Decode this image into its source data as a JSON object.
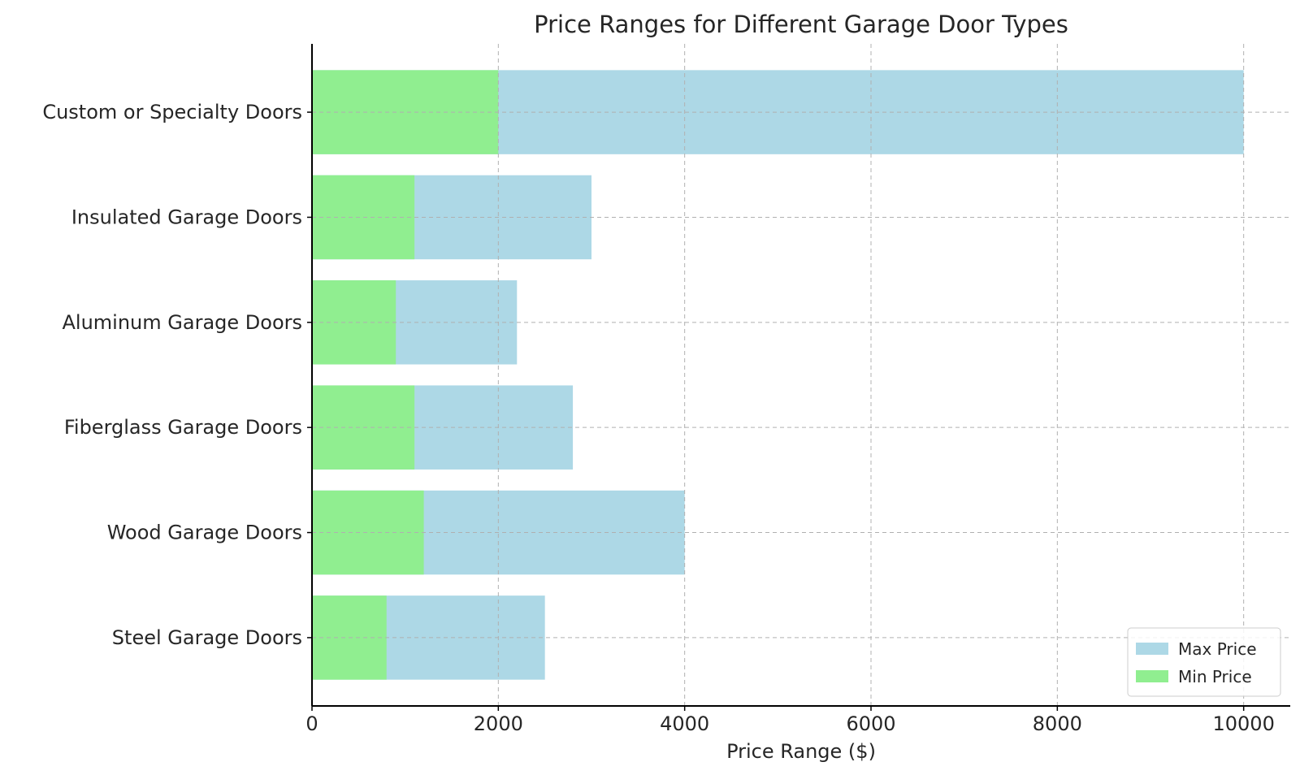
{
  "chart_data": {
    "type": "bar",
    "orientation": "horizontal",
    "title": "Price Ranges for Different Garage Door Types",
    "xlabel": "Price Range ($)",
    "ylabel": "",
    "categories": [
      "Steel Garage Doors",
      "Wood Garage Doors",
      "Fiberglass Garage Doors",
      "Aluminum Garage Doors",
      "Insulated Garage Doors",
      "Custom or Specialty Doors"
    ],
    "series": [
      {
        "name": "Max Price",
        "color": "#add8e6",
        "values": [
          2500,
          4000,
          2800,
          2200,
          3000,
          10000
        ]
      },
      {
        "name": "Min Price",
        "color": "#90ee90",
        "values": [
          800,
          1200,
          1100,
          900,
          1100,
          2000
        ]
      }
    ],
    "xlim": [
      0,
      10500
    ],
    "xticks": [
      0,
      2000,
      4000,
      6000,
      8000,
      10000
    ],
    "grid": true,
    "legend_position": "bottom-right"
  }
}
